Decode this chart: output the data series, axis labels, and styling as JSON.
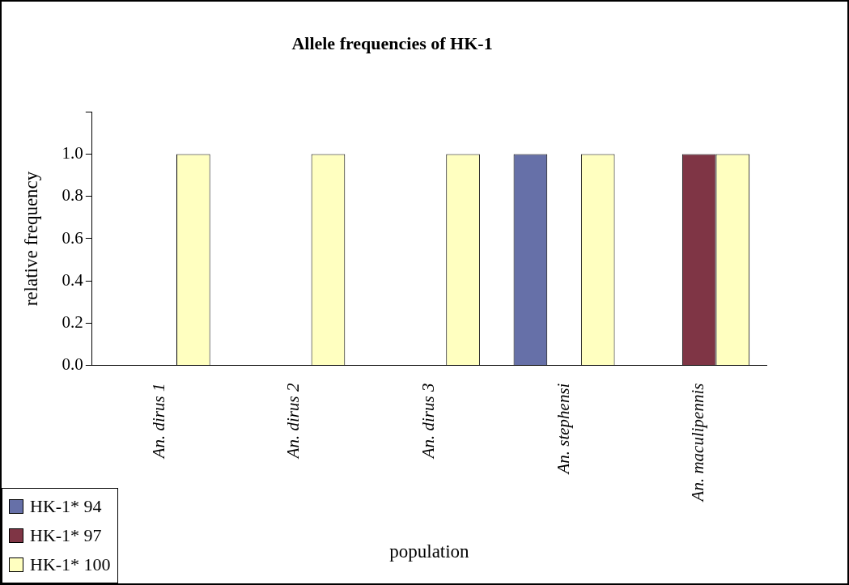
{
  "chart_data": {
    "type": "bar",
    "title": "Allele frequencies of HK-1",
    "xlabel": "population",
    "ylabel": "relative frequency",
    "categories": [
      "An. dirus 1",
      "An. dirus 2",
      "An. dirus 3",
      "An. stephensi",
      "An. maculipennis"
    ],
    "series": [
      {
        "name": "HK-1* 94",
        "color": "#6670a8",
        "values": [
          0,
          0,
          0,
          1,
          0
        ]
      },
      {
        "name": "HK-1* 97",
        "color": "#7f3545",
        "values": [
          0,
          0,
          0,
          0,
          1
        ]
      },
      {
        "name": "HK-1* 100",
        "color": "#ffffc0",
        "values": [
          1,
          1,
          1,
          1,
          1
        ]
      }
    ],
    "ylim": [
      0,
      1.2
    ],
    "yticks": [
      {
        "value": 0,
        "label": "0.0"
      },
      {
        "value": 0.2,
        "label": "0.2"
      },
      {
        "value": 0.4,
        "label": "0.4"
      },
      {
        "value": 0.6,
        "label": "0.6"
      },
      {
        "value": 0.8,
        "label": "0.8"
      },
      {
        "value": 1,
        "label": "1.0"
      },
      {
        "value": 1.2,
        "label": null
      }
    ],
    "grid": false,
    "legend": "bottom left"
  }
}
